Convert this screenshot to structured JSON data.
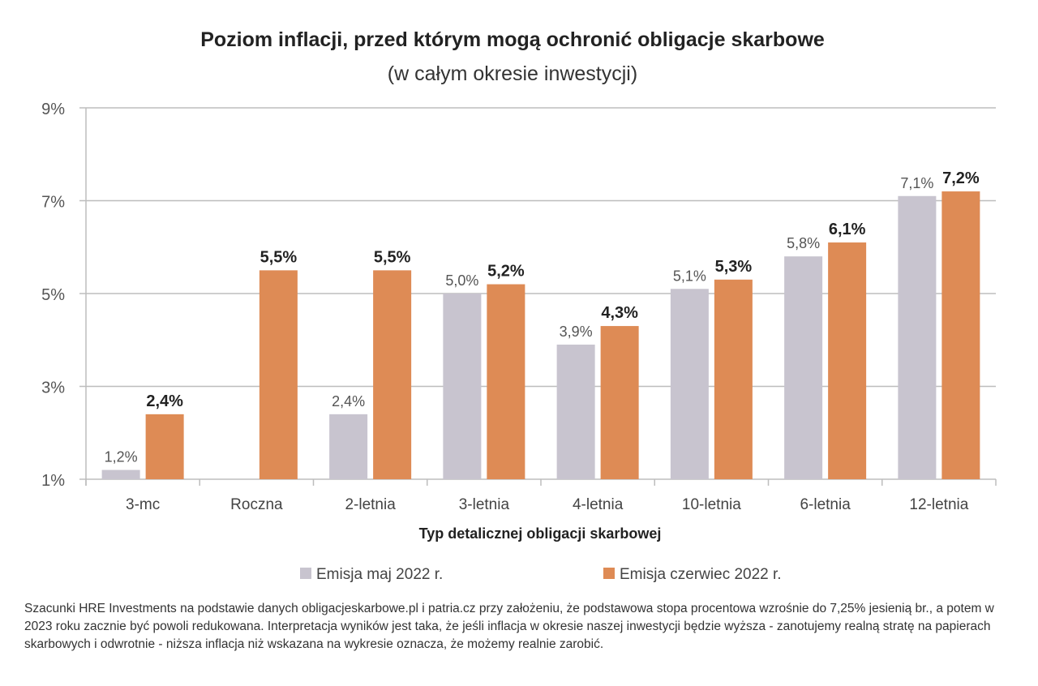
{
  "chart_data": {
    "type": "bar",
    "title": "Poziom inflacji, przed którym mogą ochronić obligacje skarbowe",
    "subtitle": "(w całym okresie inwestycji)",
    "xlabel": "Typ detalicznej obligacji skarbowej",
    "ylabel": "",
    "ylim": [
      1,
      9
    ],
    "yticks": [
      "1%",
      "3%",
      "5%",
      "7%",
      "9%"
    ],
    "ytick_values": [
      1,
      3,
      5,
      7,
      9
    ],
    "grid": true,
    "legend_position": "bottom",
    "categories": [
      "3-mc",
      "Roczna",
      "2-letnia",
      "3-letnia",
      "4-letnia",
      "10-letnia",
      "6-letnia",
      "12-letnia"
    ],
    "series": [
      {
        "name": "Emisja maj 2022 r.",
        "color": "#c8c4cf",
        "values": [
          1.2,
          null,
          2.4,
          5.0,
          3.9,
          5.1,
          5.8,
          7.1
        ],
        "labels": [
          "1,2%",
          "",
          "2,4%",
          "5,0%",
          "3,9%",
          "5,1%",
          "5,8%",
          "7,1%"
        ]
      },
      {
        "name": "Emisja czerwiec 2022 r.",
        "color": "#de8b55",
        "values": [
          2.4,
          5.5,
          5.5,
          5.2,
          4.3,
          5.3,
          6.1,
          7.2
        ],
        "labels": [
          "2,4%",
          "5,5%",
          "5,5%",
          "5,2%",
          "4,3%",
          "5,3%",
          "6,1%",
          "7,2%"
        ]
      }
    ]
  },
  "footnote": "Szacunki HRE Investments na podstawie danych obligacjeskarbowe.pl i patria.cz przy założeniu, że podstawowa stopa procentowa wzrośnie do 7,25% jesienią br., a potem w 2023 roku zacznie być powoli redukowana. Interpretacja wyników jest taka, że jeśli inflacja w okresie naszej inwestycji będzie wyższa - zanotujemy realną stratę na papierach skarbowych i odwrotnie - niższa inflacja niż wskazana na wykresie oznacza, że możemy realnie zarobić."
}
